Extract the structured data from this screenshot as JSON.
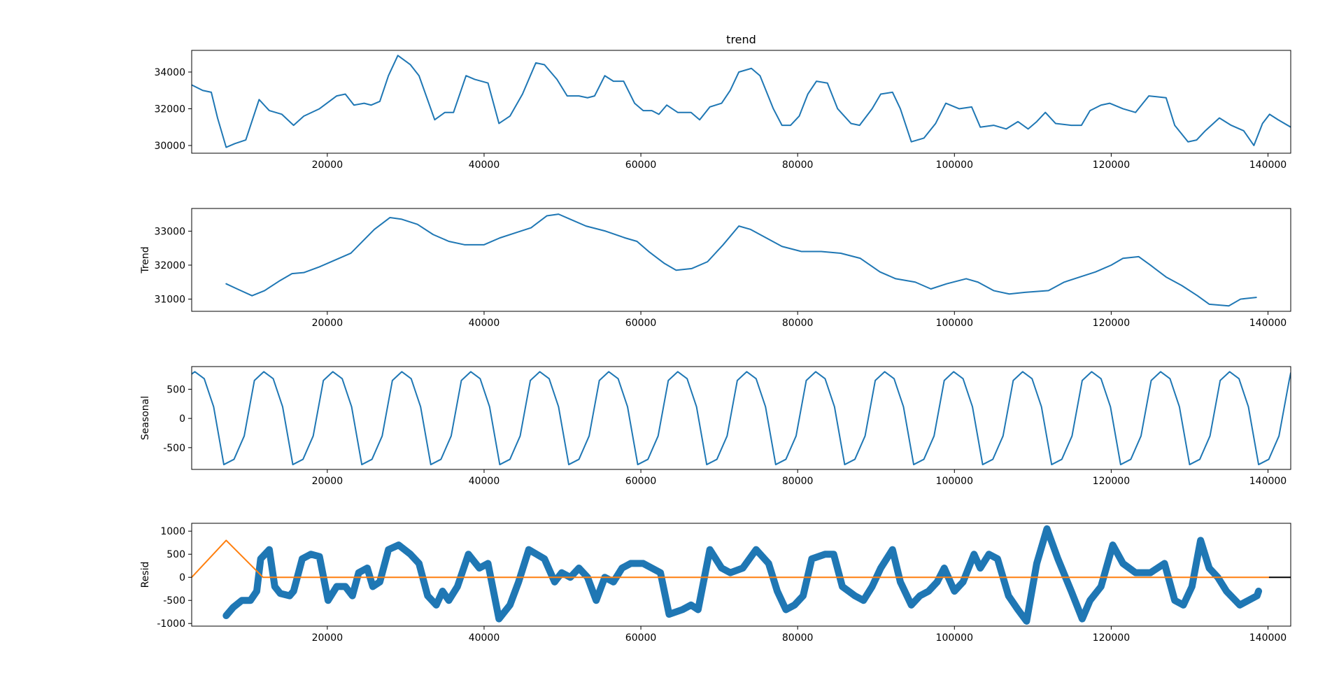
{
  "chart_data": [
    {
      "type": "line",
      "title": "trend",
      "xlim": [
        2700,
        142900
      ],
      "ylim": [
        29580,
        35180
      ],
      "xticks": [
        20000,
        40000,
        60000,
        80000,
        100000,
        120000,
        140000
      ],
      "yticks": [
        30000,
        32000,
        34000
      ],
      "series": [
        {
          "color": "#1f77b4",
          "x": [
            2700,
            4100,
            5200,
            6000,
            7100,
            8200,
            9600,
            11300,
            12600,
            14200,
            15700,
            17000,
            19000,
            21200,
            22300,
            23400,
            24700,
            25600,
            26700,
            27800,
            29000,
            30600,
            31700,
            33700,
            35000,
            36100,
            37700,
            38800,
            40500,
            41900,
            43300,
            44900,
            46600,
            47700,
            49300,
            50600,
            52100,
            53200,
            54100,
            55400,
            56500,
            57800,
            59200,
            60300,
            61400,
            62300,
            63300,
            64700,
            66400,
            67500,
            68800,
            70300,
            71400,
            72500,
            74100,
            75200,
            76900,
            78000,
            79100,
            80200,
            81300,
            82400,
            83800,
            85100,
            86800,
            87900,
            89500,
            90600,
            92100,
            93100,
            94500,
            96100,
            97600,
            98900,
            100600,
            102200,
            103300,
            105000,
            106600,
            108100,
            109400,
            110500,
            111600,
            112900,
            114900,
            116200,
            117300,
            118700,
            119800,
            121500,
            123100,
            124800,
            127000,
            128100,
            129800,
            130900,
            132000,
            133800,
            135300,
            136900,
            138200,
            139300,
            140200,
            141300,
            142900
          ],
          "values": [
            33300,
            33000,
            32900,
            31500,
            29900,
            30100,
            30300,
            32500,
            31900,
            31700,
            31100,
            31600,
            32000,
            32700,
            32800,
            32200,
            32300,
            32200,
            32400,
            33800,
            34900,
            34400,
            33800,
            31400,
            31800,
            31800,
            33800,
            33600,
            33400,
            31200,
            31600,
            32800,
            34500,
            34400,
            33600,
            32700,
            32700,
            32600,
            32700,
            33800,
            33500,
            33500,
            32300,
            31900,
            31900,
            31700,
            32200,
            31800,
            31800,
            31400,
            32100,
            32300,
            33000,
            34000,
            34200,
            33800,
            32000,
            31100,
            31100,
            31600,
            32800,
            33500,
            33400,
            32000,
            31200,
            31100,
            32000,
            32800,
            32900,
            32000,
            30200,
            30400,
            31200,
            32300,
            32000,
            32100,
            31000,
            31100,
            30900,
            31300,
            30900,
            31300,
            31800,
            31200,
            31100,
            31100,
            31900,
            32200,
            32300,
            32000,
            31800,
            32700,
            32600,
            31100,
            30200,
            30300,
            30800,
            31500,
            31100,
            30800,
            30000,
            31200,
            31700,
            31400,
            31000
          ]
        }
      ]
    },
    {
      "type": "line",
      "ylabel": "Trend",
      "xlim": [
        2700,
        142900
      ],
      "ylim": [
        30641,
        33667
      ],
      "xticks": [
        20000,
        40000,
        60000,
        80000,
        100000,
        120000,
        140000
      ],
      "yticks": [
        31000,
        32000,
        33000
      ],
      "series": [
        {
          "color": "#1f77b4",
          "x": [
            7100,
            8500,
            10400,
            12000,
            14000,
            15500,
            17000,
            19000,
            21000,
            23000,
            24500,
            26000,
            28000,
            29500,
            31500,
            33500,
            35500,
            37500,
            40000,
            42000,
            44000,
            46000,
            48000,
            49500,
            51000,
            53000,
            55500,
            58000,
            59500,
            61000,
            63000,
            64500,
            66500,
            68500,
            70500,
            72500,
            74000,
            76000,
            78000,
            80500,
            83000,
            85500,
            88000,
            90500,
            92500,
            95000,
            97000,
            99000,
            101500,
            103000,
            105000,
            107000,
            109000,
            112000,
            114000,
            116000,
            118000,
            120000,
            121500,
            123500,
            125000,
            127000,
            129000,
            131000,
            132500,
            135000,
            136500,
            138500
          ],
          "values": [
            31450,
            31300,
            31100,
            31250,
            31550,
            31750,
            31780,
            31950,
            32150,
            32350,
            32700,
            33050,
            33400,
            33350,
            33200,
            32900,
            32700,
            32600,
            32600,
            32800,
            32950,
            33100,
            33450,
            33500,
            33350,
            33150,
            33000,
            32800,
            32700,
            32400,
            32050,
            31850,
            31900,
            32100,
            32600,
            33150,
            33050,
            32800,
            32550,
            32400,
            32400,
            32350,
            32200,
            31800,
            31600,
            31500,
            31300,
            31450,
            31600,
            31500,
            31250,
            31150,
            31200,
            31250,
            31500,
            31650,
            31800,
            32000,
            32200,
            32250,
            32000,
            31650,
            31400,
            31100,
            30850,
            30800,
            31000,
            31050
          ]
        }
      ]
    },
    {
      "type": "line",
      "ylabel": "Seasonal",
      "xlim": [
        2700,
        142900
      ],
      "ylim": [
        -873,
        888
      ],
      "xticks": [
        20000,
        40000,
        60000,
        80000,
        100000,
        120000,
        140000
      ],
      "yticks": [
        -500,
        0,
        500
      ],
      "series": [
        {
          "color": "#1f77b4",
          "x": [
            2700,
            3100,
            4300,
            5500,
            6800,
            8100,
            9400,
            10700,
            11900,
            13100,
            14300,
            15600,
            16900,
            18200,
            19500,
            20700,
            21900,
            23100,
            24400,
            25700,
            27000,
            28300,
            29500,
            30700,
            31900,
            33200,
            34500,
            35800,
            37100,
            38300,
            39500,
            40700,
            42000,
            43300,
            44600,
            45900,
            47100,
            48300,
            49500,
            50800,
            52100,
            53400,
            54700,
            55900,
            57100,
            58300,
            59600,
            60900,
            62200,
            63500,
            64700,
            65900,
            67100,
            68400,
            69700,
            71000,
            72300,
            73500,
            74700,
            75900,
            77200,
            78500,
            79800,
            81100,
            82300,
            83500,
            84700,
            86000,
            87300,
            88600,
            89900,
            91100,
            92300,
            93500,
            94800,
            96100,
            97400,
            98700,
            99900,
            101100,
            102300,
            103600,
            104900,
            106200,
            107500,
            108700,
            109900,
            111100,
            112400,
            113700,
            115000,
            116300,
            117500,
            118700,
            119900,
            121200,
            122500,
            123800,
            125100,
            126300,
            127500,
            128700,
            130000,
            131300,
            132600,
            133900,
            135100,
            136300,
            137500,
            138800,
            140100,
            141400,
            142700,
            142900
          ],
          "values": [
            760,
            800,
            680,
            200,
            -790,
            -700,
            -300,
            650,
            800,
            680,
            200,
            -790,
            -700,
            -300,
            650,
            800,
            680,
            200,
            -790,
            -700,
            -300,
            650,
            800,
            680,
            200,
            -790,
            -700,
            -300,
            650,
            800,
            680,
            200,
            -790,
            -700,
            -300,
            650,
            800,
            680,
            200,
            -790,
            -700,
            -300,
            650,
            800,
            680,
            200,
            -790,
            -700,
            -300,
            650,
            800,
            680,
            200,
            -790,
            -700,
            -300,
            650,
            800,
            680,
            200,
            -790,
            -700,
            -300,
            650,
            800,
            680,
            200,
            -790,
            -700,
            -300,
            650,
            800,
            680,
            200,
            -790,
            -700,
            -300,
            650,
            800,
            680,
            200,
            -790,
            -700,
            -300,
            650,
            800,
            680,
            200,
            -790,
            -700,
            -300,
            650,
            800,
            680,
            200,
            -790,
            -700,
            -300,
            650,
            800,
            680,
            200,
            -790,
            -700,
            -300,
            650,
            800,
            680,
            200,
            -790,
            -700,
            -300,
            650,
            780
          ]
        }
      ]
    },
    {
      "type": "line",
      "ylabel": "Resid",
      "xlim": [
        2700,
        142900
      ],
      "ylim": [
        -1057,
        1170
      ],
      "xticks": [
        20000,
        40000,
        60000,
        80000,
        100000,
        120000,
        140000
      ],
      "yticks": [
        -1000,
        -500,
        0,
        500,
        1000
      ],
      "series": [
        {
          "color": "#1f77b4",
          "width": 10,
          "x": [
            7100,
            8000,
            9100,
            10200,
            11000,
            11500,
            12600,
            13300,
            14000,
            15200,
            15700,
            16800,
            17900,
            19000,
            20100,
            21200,
            22300,
            23200,
            24000,
            25100,
            25800,
            26700,
            27800,
            29100,
            30600,
            31700,
            32800,
            33900,
            34700,
            35500,
            36600,
            38000,
            39400,
            40500,
            41900,
            43300,
            44400,
            45700,
            47700,
            49000,
            49900,
            51000,
            52100,
            53200,
            54300,
            55400,
            56500,
            57600,
            58700,
            60300,
            62500,
            63600,
            65300,
            66400,
            67300,
            68800,
            70300,
            71400,
            73000,
            74700,
            76300,
            77400,
            78500,
            79600,
            80700,
            81800,
            83500,
            84600,
            85700,
            87300,
            88400,
            89500,
            90600,
            92100,
            93100,
            94500,
            95600,
            96700,
            97800,
            98700,
            100000,
            101100,
            102500,
            103300,
            104400,
            105500,
            106900,
            108100,
            109200,
            110500,
            111800,
            113200,
            114900,
            116300,
            117300,
            118700,
            120200,
            121500,
            123100,
            125000,
            126800,
            128100,
            129200,
            130300,
            131400,
            132500,
            133600,
            134700,
            136400,
            137500,
            138600,
            138800
          ],
          "values": [
            -830,
            -650,
            -500,
            -500,
            -300,
            400,
            600,
            -200,
            -350,
            -400,
            -300,
            400,
            500,
            450,
            -500,
            -200,
            -200,
            -400,
            100,
            200,
            -200,
            -100,
            600,
            700,
            500,
            300,
            -400,
            -600,
            -300,
            -500,
            -200,
            500,
            200,
            300,
            -900,
            -600,
            -100,
            600,
            400,
            -100,
            100,
            0,
            200,
            0,
            -500,
            0,
            -100,
            200,
            300,
            300,
            100,
            -800,
            -700,
            -600,
            -700,
            600,
            200,
            100,
            200,
            600,
            300,
            -300,
            -700,
            -600,
            -400,
            400,
            500,
            500,
            -200,
            -400,
            -500,
            -200,
            200,
            600,
            -100,
            -600,
            -400,
            -300,
            -100,
            200,
            -300,
            -100,
            500,
            200,
            500,
            400,
            -400,
            -700,
            -950,
            300,
            1050,
            400,
            -300,
            -900,
            -500,
            -200,
            700,
            300,
            100,
            100,
            300,
            -500,
            -600,
            -200,
            800,
            200,
            0,
            -300,
            -600,
            -500,
            -400,
            -300
          ]
        },
        {
          "color": "#ff7f0e",
          "width": 2,
          "x": [
            2700,
            7100,
            11800,
            140200
          ],
          "values": [
            0,
            800,
            0,
            0
          ]
        },
        {
          "color": "#000000",
          "width": 2,
          "x": [
            140200,
            142900
          ],
          "values": [
            0,
            0
          ]
        }
      ]
    }
  ]
}
